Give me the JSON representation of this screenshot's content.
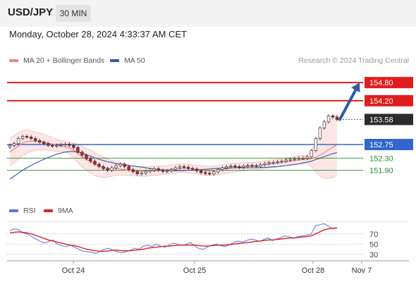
{
  "header": {
    "symbol": "USD/JPY",
    "timeframe": "30 MIN"
  },
  "datetime": "Monday, October 28, 2024 4:33:37 AM CET",
  "legend": {
    "ma20_label": "MA 20 + Bollinger Bands",
    "ma50_label": "MA 50",
    "credit": "Research © 2024 Trading Central"
  },
  "rsi_legend": {
    "rsi_label": "RSI",
    "ma_label": "9MA"
  },
  "colors": {
    "resistance": "#e01e1e",
    "pivot": "#3366cc",
    "support": "#2e8b2e",
    "ma20": "#f08080",
    "ma50": "#3355aa",
    "band_fill": "#fbdede",
    "candle_up": "#ffffff",
    "candle_down": "#d42020",
    "current": "#2b2b2b",
    "arrow": "#2f5a9e"
  },
  "chart_data": [
    {
      "type": "candlestick",
      "title": "USD/JPY 30 MIN",
      "ylim": [
        151.0,
        155.2
      ],
      "x_tick_labels": [
        "Oct 24",
        "Oct 25",
        "Oct 28",
        "Nov 7"
      ],
      "levels": [
        {
          "value": 154.8,
          "label": "154.80",
          "kind": "resistance"
        },
        {
          "value": 154.2,
          "label": "154.20",
          "kind": "resistance"
        },
        {
          "value": 152.75,
          "label": "152.75",
          "kind": "pivot"
        },
        {
          "value": 152.3,
          "label": "152.30",
          "kind": "support"
        },
        {
          "value": 151.9,
          "label": "151.90",
          "kind": "support"
        }
      ],
      "current_price": {
        "value": 153.58,
        "label": "153.58"
      },
      "target_arrow": {
        "from": 153.58,
        "to": 154.8
      },
      "price_path": [
        152.72,
        152.78,
        152.95,
        153.02,
        153.0,
        152.95,
        152.88,
        152.83,
        152.78,
        152.72,
        152.7,
        152.72,
        152.74,
        152.76,
        152.72,
        152.65,
        152.5,
        152.4,
        152.28,
        152.2,
        152.1,
        152.02,
        151.95,
        151.9,
        151.98,
        152.05,
        152.1,
        152.02,
        151.92,
        151.85,
        151.78,
        151.8,
        151.86,
        151.9,
        151.95,
        151.9,
        151.86,
        151.88,
        151.92,
        151.98,
        152.02,
        152.0,
        151.96,
        151.94,
        151.88,
        151.82,
        151.8,
        151.78,
        151.85,
        151.92,
        151.98,
        152.02,
        152.04,
        152.02,
        152.0,
        152.04,
        152.06,
        152.05,
        152.03,
        152.08,
        152.12,
        152.15,
        152.16,
        152.18,
        152.2,
        152.24,
        152.26,
        152.28,
        152.3,
        152.3,
        152.35,
        152.55,
        152.95,
        153.3,
        153.5,
        153.7,
        153.66,
        153.58
      ],
      "ma20": [
        152.5,
        152.6,
        152.7,
        152.8,
        152.85,
        152.86,
        152.86,
        152.85,
        152.83,
        152.8,
        152.76,
        152.72,
        152.7,
        152.68,
        152.64,
        152.56,
        152.45,
        152.35,
        152.26,
        152.18,
        152.1,
        152.04,
        152.0,
        151.97,
        151.96,
        151.96,
        151.94,
        151.92,
        151.9,
        151.88,
        151.87,
        151.86,
        151.86,
        151.87,
        151.88,
        151.89,
        151.9,
        151.91,
        151.93,
        151.95,
        151.96,
        151.96,
        151.95,
        151.94,
        151.92,
        151.9,
        151.88,
        151.88,
        151.89,
        151.91,
        151.93,
        151.95,
        151.97,
        151.99,
        152.0,
        152.01,
        152.02,
        152.03,
        152.04,
        152.06,
        152.08,
        152.1,
        152.12,
        152.14,
        152.16,
        152.18,
        152.2,
        152.22,
        152.24,
        152.25,
        152.26,
        152.28,
        152.33,
        152.4,
        152.48,
        152.58,
        152.66,
        152.74
      ],
      "bb_width": [
        0.45,
        0.45,
        0.44,
        0.42,
        0.38,
        0.34,
        0.3,
        0.28,
        0.26,
        0.24,
        0.22,
        0.2,
        0.18,
        0.18,
        0.2,
        0.24,
        0.3,
        0.34,
        0.36,
        0.38,
        0.38,
        0.36,
        0.34,
        0.3,
        0.26,
        0.22,
        0.2,
        0.18,
        0.17,
        0.16,
        0.16,
        0.16,
        0.16,
        0.15,
        0.15,
        0.15,
        0.14,
        0.14,
        0.14,
        0.14,
        0.14,
        0.14,
        0.14,
        0.14,
        0.14,
        0.15,
        0.15,
        0.15,
        0.15,
        0.15,
        0.15,
        0.15,
        0.15,
        0.15,
        0.14,
        0.14,
        0.13,
        0.13,
        0.13,
        0.13,
        0.13,
        0.13,
        0.13,
        0.13,
        0.13,
        0.13,
        0.13,
        0.13,
        0.13,
        0.14,
        0.14,
        0.26,
        0.5,
        0.7,
        0.85,
        0.95,
        1.0,
        1.0
      ],
      "ma50": [
        151.6,
        151.7,
        151.8,
        151.9,
        151.98,
        152.06,
        152.13,
        152.2,
        152.26,
        152.32,
        152.38,
        152.43,
        152.47,
        152.5,
        152.52,
        152.52,
        152.5,
        152.46,
        152.41,
        152.36,
        152.31,
        152.26,
        152.22,
        152.18,
        152.15,
        152.12,
        152.1,
        152.08,
        152.06,
        152.04,
        152.02,
        152.0,
        151.98,
        151.96,
        151.94,
        151.92,
        151.91,
        151.9,
        151.89,
        151.89,
        151.89,
        151.89,
        151.9,
        151.9,
        151.91,
        151.92,
        151.93,
        151.94,
        151.95,
        151.96,
        151.97,
        151.97,
        151.98,
        151.98,
        151.98,
        151.98,
        151.98,
        151.98,
        151.98,
        151.99,
        151.99,
        152.0,
        152.01,
        152.02,
        152.04,
        152.05,
        152.07,
        152.09,
        152.11,
        152.14,
        152.17,
        152.2,
        152.25,
        152.3,
        152.35,
        152.4,
        152.45,
        152.48
      ]
    },
    {
      "type": "line",
      "title": "RSI",
      "ylim": [
        20,
        100
      ],
      "y_ticks": [
        70,
        50,
        30
      ],
      "series": [
        {
          "name": "RSI",
          "color": "#5577dd",
          "values": [
            76,
            80,
            78,
            72,
            70,
            65,
            60,
            56,
            52,
            55,
            58,
            50,
            47,
            45,
            48,
            44,
            40,
            36,
            35,
            34,
            32,
            36,
            40,
            42,
            38,
            35,
            33,
            35,
            38,
            42,
            40,
            46,
            48,
            45,
            50,
            46,
            44,
            48,
            52,
            50,
            47,
            50,
            53,
            46,
            41,
            40,
            45,
            48,
            50,
            47,
            45,
            49,
            53,
            56,
            54,
            57,
            60,
            58,
            55,
            59,
            62,
            57,
            60,
            63,
            66,
            64,
            62,
            65,
            66,
            68,
            70,
            86,
            88,
            90,
            85,
            80,
            82
          ]
        },
        {
          "name": "9MA",
          "color": "#e02020",
          "values": [
            72,
            73,
            74,
            73,
            72,
            70,
            67,
            64,
            61,
            58,
            56,
            54,
            52,
            50,
            48,
            47,
            45,
            42,
            40,
            38,
            37,
            36,
            36,
            37,
            38,
            38,
            37,
            37,
            37,
            38,
            39,
            40,
            42,
            43,
            44,
            45,
            46,
            46,
            47,
            48,
            48,
            48,
            48,
            48,
            47,
            46,
            46,
            47,
            48,
            48,
            48,
            49,
            50,
            51,
            52,
            53,
            54,
            55,
            56,
            57,
            58,
            58,
            59,
            60,
            61,
            62,
            62,
            63,
            64,
            65,
            66,
            70,
            74,
            78,
            80,
            81,
            82
          ]
        }
      ]
    }
  ]
}
